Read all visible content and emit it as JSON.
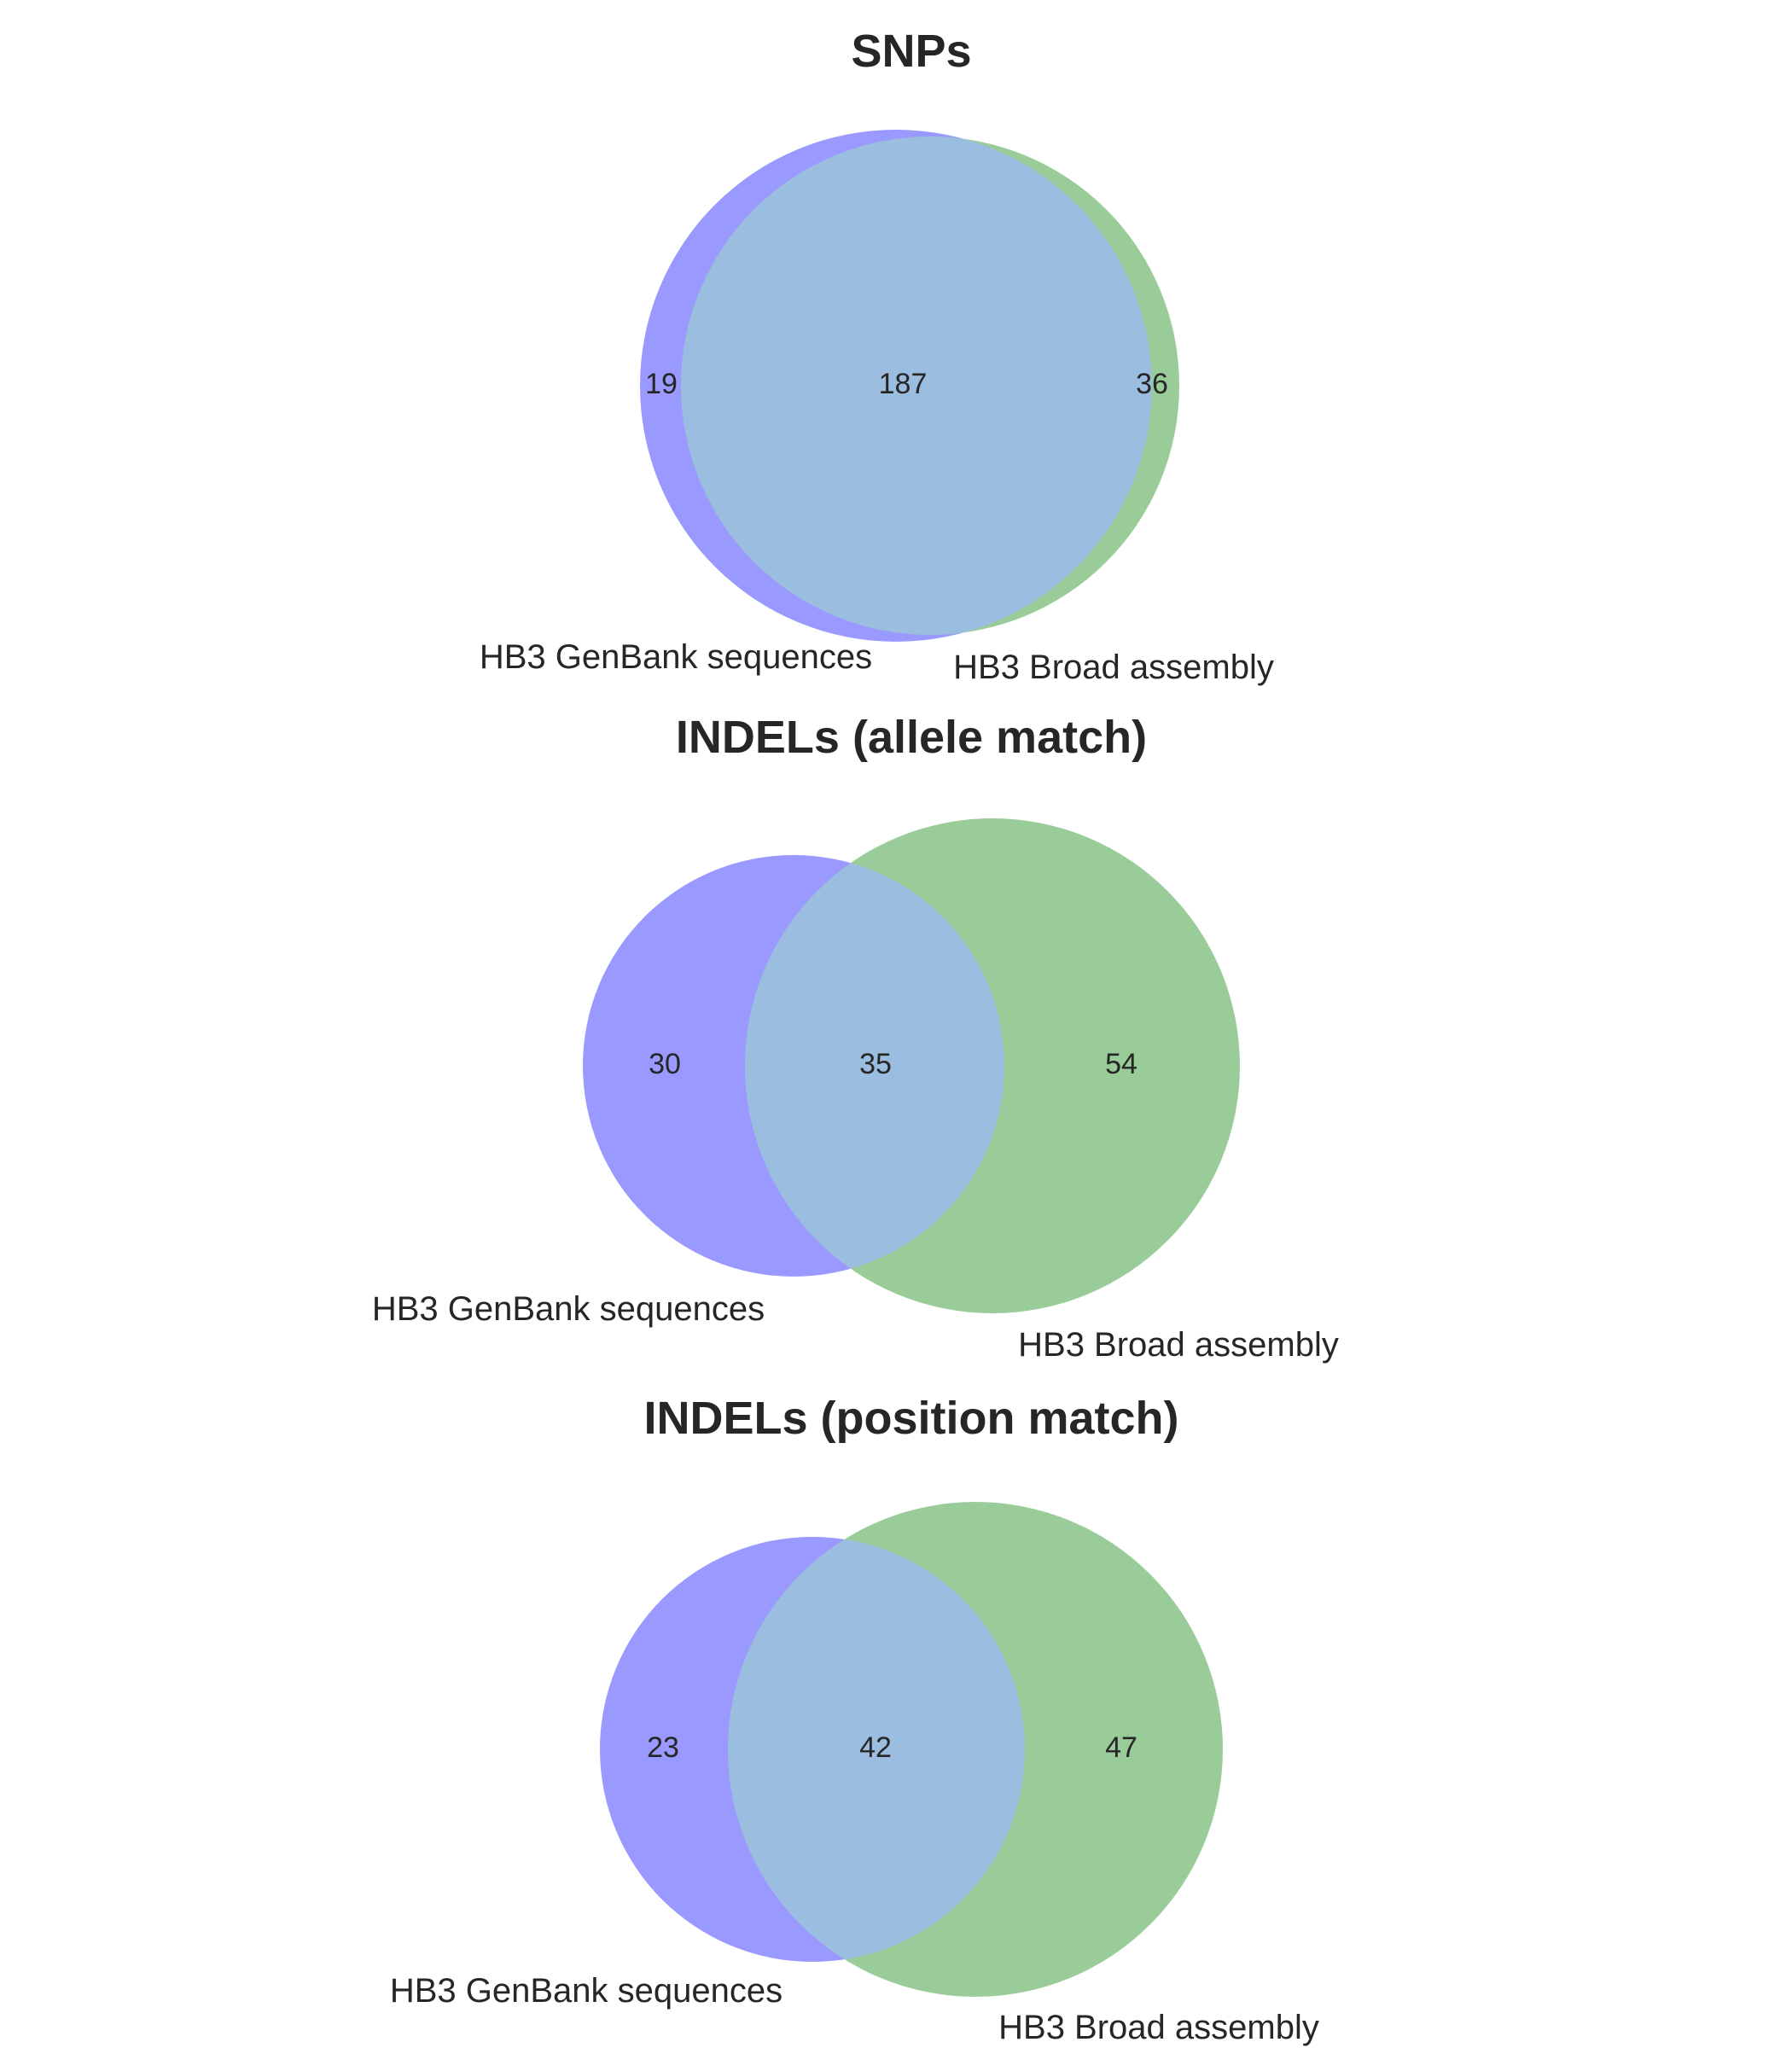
{
  "chart_data": [
    {
      "type": "venn",
      "title": "SNPs",
      "sets": [
        "HB3 GenBank sequences",
        "HB3 Broad assembly"
      ],
      "only_a": "19",
      "both": "187",
      "only_b": "36",
      "colors": {
        "set_a": "#9999ff",
        "set_b": "#99cc99",
        "overlap": "#9bbde0"
      }
    },
    {
      "type": "venn",
      "title": "INDELs (allele match)",
      "sets": [
        "HB3 GenBank sequences",
        "HB3 Broad assembly"
      ],
      "only_a": "30",
      "both": "35",
      "only_b": "54",
      "colors": {
        "set_a": "#9999ff",
        "set_b": "#99cc99",
        "overlap": "#9bbde0"
      }
    },
    {
      "type": "venn",
      "title": "INDELs (position match)",
      "sets": [
        "HB3 GenBank sequences",
        "HB3 Broad assembly"
      ],
      "only_a": "23",
      "both": "42",
      "only_b": "47",
      "colors": {
        "set_a": "#9999ff",
        "set_b": "#99cc99",
        "overlap": "#9bbde0"
      }
    }
  ]
}
